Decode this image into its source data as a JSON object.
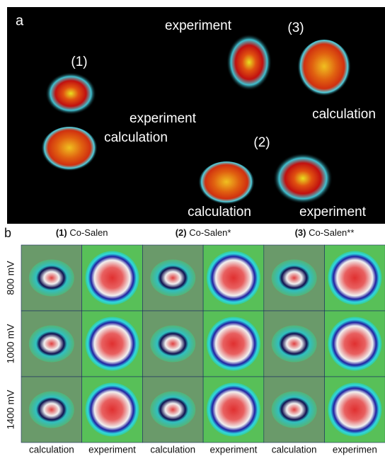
{
  "panel_a": {
    "label": "a",
    "annotations": [
      "experiment",
      "(3)",
      "(1)",
      "experiment",
      "calculation",
      "calculation",
      "(2)",
      "calculation",
      "experiment"
    ]
  },
  "panel_b": {
    "label": "b",
    "columns": [
      {
        "number": "(1)",
        "name": "Co-Salen"
      },
      {
        "number": "(2)",
        "name": "Co-Salen*"
      },
      {
        "number": "(3)",
        "name": "Co-Salen**"
      }
    ],
    "rows": [
      "800 mV",
      "1000 mV",
      "1400 mV"
    ],
    "column_labels": [
      "calculation",
      "experiment",
      "calculation",
      "experiment",
      "calculation",
      "experimen"
    ]
  }
}
